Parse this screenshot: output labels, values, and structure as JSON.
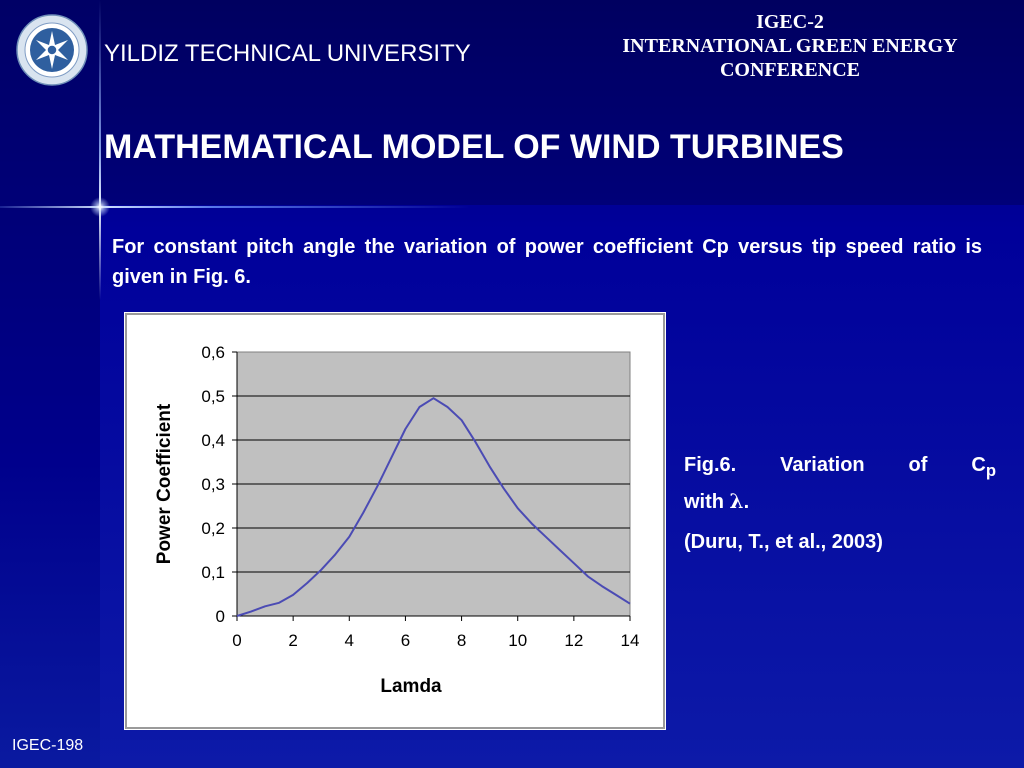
{
  "header": {
    "university": "YILDIZ TECHNICAL UNIVERSITY",
    "conference_line1": "IGEC-2",
    "conference_line2": "INTERNATIONAL GREEN ENERGY",
    "conference_line3": "CONFERENCE"
  },
  "title": "MATHEMATICAL MODEL OF WIND TURBINES",
  "intro_text": "For constant pitch angle the variation of power coefficient Cp versus tip speed ratio is given in Fig. 6.",
  "caption": {
    "line1_prefix": "Fig.6. Variation of C",
    "line1_sub": "p",
    "line2_prefix": "with ",
    "line2_symbol": "λ",
    "line2_suffix": ".",
    "citation": "(Duru, T., et al., 2003)"
  },
  "footer": "IGEC-198",
  "colors": {
    "background": "#00009a",
    "plot_area": "#c0c0c0",
    "curve": "#4b4bb4",
    "text": "#ffffff"
  },
  "chart_data": {
    "type": "line",
    "xlabel": "Lamda",
    "ylabel": "Power Coefficient",
    "xlim": [
      0,
      14
    ],
    "ylim": [
      0,
      0.6
    ],
    "x_ticks": [
      "0",
      "2",
      "4",
      "6",
      "8",
      "10",
      "12",
      "14"
    ],
    "y_ticks": [
      "0",
      "0,1",
      "0,2",
      "0,3",
      "0,4",
      "0,5",
      "0,6"
    ],
    "grid": "horizontal",
    "legend": "none",
    "series": [
      {
        "x": [
          0,
          0.5,
          1,
          1.5,
          2,
          2.5,
          3,
          3.5,
          4,
          4.5,
          5,
          5.5,
          6,
          6.5,
          7,
          7.5,
          8,
          8.5,
          9,
          9.5,
          10,
          10.5,
          11,
          11.5,
          12,
          12.5,
          13,
          13.5,
          14
        ],
        "values": [
          0,
          0.01,
          0.022,
          0.03,
          0.048,
          0.075,
          0.105,
          0.14,
          0.18,
          0.235,
          0.295,
          0.36,
          0.425,
          0.475,
          0.495,
          0.475,
          0.445,
          0.395,
          0.34,
          0.29,
          0.245,
          0.21,
          0.18,
          0.15,
          0.12,
          0.09,
          0.068,
          0.048,
          0.028
        ]
      }
    ]
  }
}
